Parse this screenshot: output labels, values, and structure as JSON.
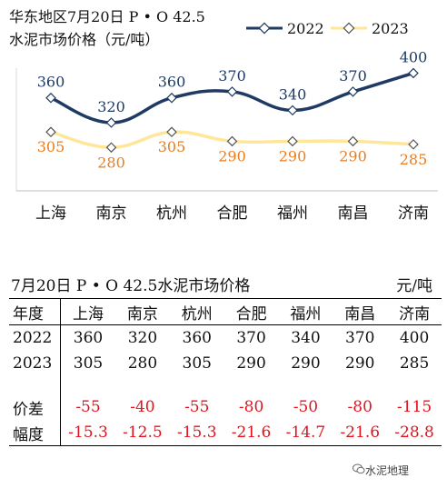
{
  "chart_data": {
    "type": "line",
    "title": "华东地区7月20日  P • O 42.5",
    "subtitle": "水泥市场价格（元/吨）",
    "categories": [
      "上海",
      "南京",
      "杭州",
      "合肥",
      "福州",
      "南昌",
      "济南"
    ],
    "series": [
      {
        "name": "2022",
        "values": [
          360,
          320,
          360,
          370,
          340,
          370,
          400
        ],
        "color": "#1f3b63"
      },
      {
        "name": "2023",
        "values": [
          305,
          280,
          305,
          290,
          290,
          290,
          285
        ],
        "color": "#ffe699"
      }
    ],
    "label_colors": {
      "2022": "#1f3b63",
      "2023": "#e97d22"
    },
    "ylim": [
      210,
      430
    ],
    "legend": "top-right",
    "grid": false
  },
  "table": {
    "title": "7月20日 P • O 42.5水泥市场价格",
    "unit": "元/吨",
    "header": [
      "年度",
      "上海",
      "南京",
      "杭州",
      "合肥",
      "福州",
      "南昌",
      "济南"
    ],
    "rows": [
      {
        "label": "2022",
        "values": [
          "360",
          "320",
          "360",
          "370",
          "340",
          "370",
          "400"
        ]
      },
      {
        "label": "2023",
        "values": [
          "305",
          "280",
          "305",
          "290",
          "290",
          "290",
          "285"
        ]
      },
      {
        "label": "价差",
        "values": [
          "-55",
          "-40",
          "-55",
          "-80",
          "-50",
          "-80",
          "-115"
        ]
      },
      {
        "label": "幅度",
        "values": [
          "-15.3",
          "-12.5",
          "-15.3",
          "-21.6",
          "-14.7",
          "-21.6",
          "-28.8"
        ]
      }
    ]
  },
  "watermark": {
    "text": "水泥地理",
    "icon": "wechat-icon"
  }
}
